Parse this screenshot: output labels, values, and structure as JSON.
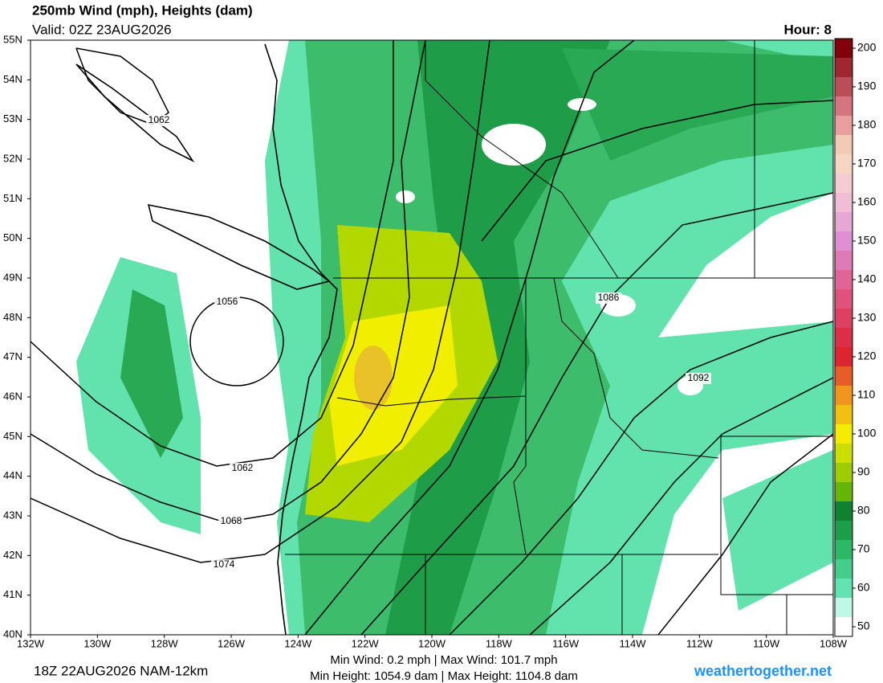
{
  "header": {
    "title": "250mb Wind (mph), Heights (dam)",
    "valid": "Valid: 02Z 23AUG2026",
    "hour": "Hour: 8"
  },
  "map": {
    "lat_labels": [
      "55N",
      "54N",
      "53N",
      "52N",
      "51N",
      "50N",
      "49N",
      "48N",
      "47N",
      "46N",
      "45N",
      "44N",
      "43N",
      "42N",
      "41N",
      "40N"
    ],
    "lon_labels": [
      "132W",
      "130W",
      "128W",
      "126W",
      "124W",
      "122W",
      "120W",
      "118W",
      "116W",
      "114W",
      "112W",
      "110W",
      "108W"
    ],
    "contour_labels": [
      "1062",
      "1056",
      "1086",
      "1092",
      "1062",
      "1068",
      "1074"
    ]
  },
  "colorbar": {
    "ticks": [
      50,
      60,
      70,
      80,
      90,
      100,
      110,
      120,
      130,
      140,
      150,
      160,
      170,
      180,
      190,
      200
    ]
  },
  "footer": {
    "run": "18Z 22AUG2026 NAM-12km",
    "wind": "Min Wind:  0.2 mph | Max Wind: 101.7 mph",
    "height": "Min Height: 1054.9 dam | Max Height: 1104.8 dam",
    "site": "weathertogether.net"
  }
}
